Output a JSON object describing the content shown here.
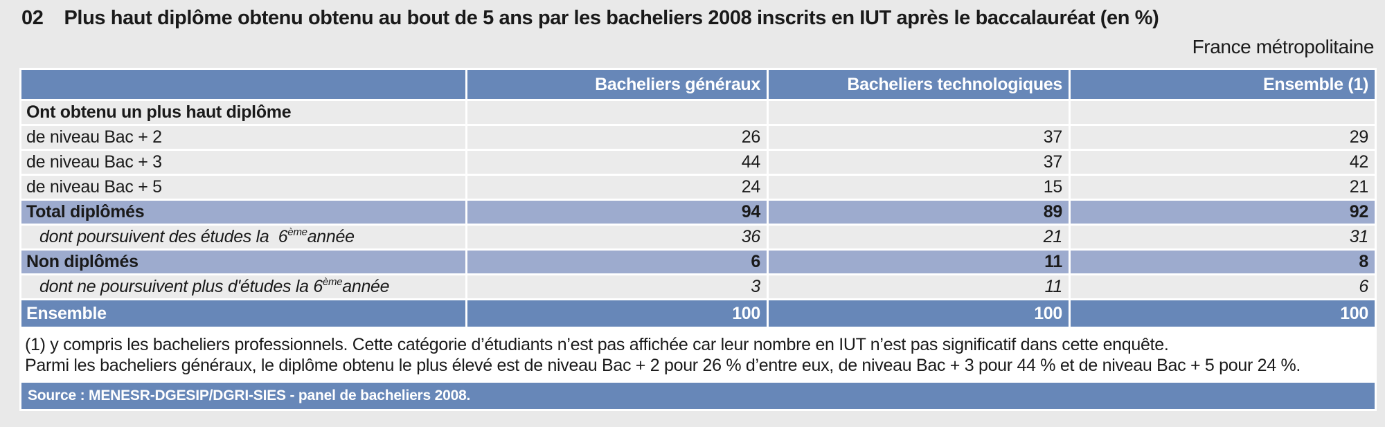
{
  "page": {
    "title_number": "02",
    "title": "Plus haut diplôme obtenu obtenu au bout de 5 ans par les bacheliers 2008 inscrits en IUT après le baccalauréat (en %)",
    "subtitle": "France métropolitaine"
  },
  "table": {
    "columns": [
      "",
      "Bacheliers généraux",
      "Bacheliers technologiques",
      "Ensemble (1)"
    ],
    "rows": [
      {
        "label": "Ont obtenu un plus haut diplôme",
        "values": [
          "",
          "",
          ""
        ]
      },
      {
        "label": "de niveau Bac + 2",
        "values": [
          "26",
          "37",
          "29"
        ]
      },
      {
        "label": "de niveau Bac + 3",
        "values": [
          "44",
          "37",
          "42"
        ]
      },
      {
        "label": "de niveau Bac + 5",
        "values": [
          "24",
          "15",
          "21"
        ]
      },
      {
        "label": "Total diplômés",
        "values": [
          "94",
          "89",
          "92"
        ]
      },
      {
        "label_pre": "dont poursuivent des études la  6",
        "label_sup": "ème",
        "label_post": " année",
        "values": [
          "36",
          "21",
          "31"
        ]
      },
      {
        "label": "Non diplômés",
        "values": [
          "6",
          "11",
          "8"
        ]
      },
      {
        "label_pre": "dont ne poursuivent plus d'études la 6",
        "label_sup": "ème",
        "label_post": " année",
        "values": [
          "3",
          "11",
          "6"
        ]
      },
      {
        "label": "Ensemble",
        "values": [
          "100",
          "100",
          "100"
        ]
      }
    ]
  },
  "notes": {
    "line1": "(1) y compris les bacheliers professionnels. Cette catégorie d’étudiants n’est pas affichée car leur nombre en IUT n’est pas significatif dans cette enquête.",
    "line2": "Parmi les bacheliers généraux, le diplôme obtenu le plus élevé est de niveau Bac + 2 pour 26 % d’entre eux, de niveau Bac + 3 pour 44 % et de niveau Bac + 5 pour 24 %."
  },
  "source": "Source : MENESR-DGESIP/DGRI-SIES - panel de bacheliers 2008.",
  "colors": {
    "header_blue": "#6787b8",
    "subtotal_blue": "#9dabce",
    "row_gray": "#ebebeb",
    "page_bg": "#e9e9e9",
    "header_text": "#ffffff"
  }
}
